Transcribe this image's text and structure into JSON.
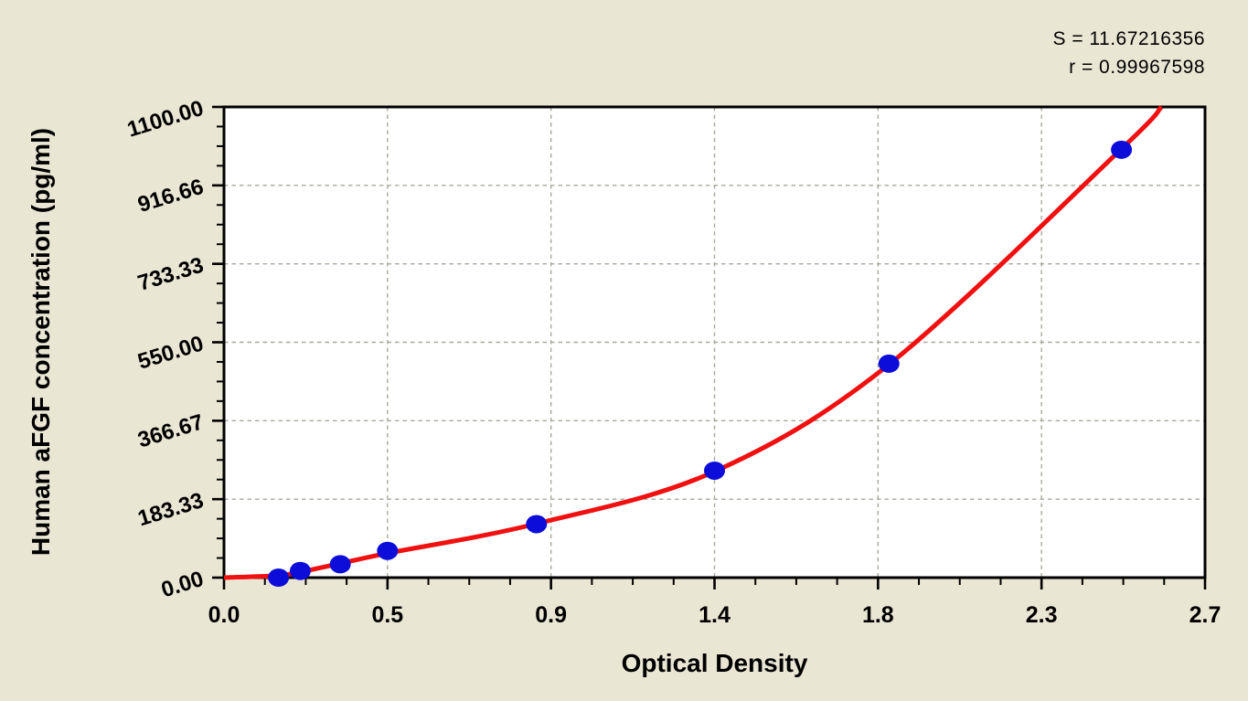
{
  "stats": {
    "s_line": "S = 11.67216356",
    "r_line": "r = 0.99967598"
  },
  "axes": {
    "x_title": "Optical Density",
    "y_title": "Human aFGF concentration (pg/ml)",
    "x_tick_labels": [
      "0.0",
      "0.5",
      "0.9",
      "1.4",
      "1.8",
      "2.3",
      "2.7"
    ],
    "y_tick_labels": [
      "0.00",
      "183.33",
      "366.67",
      "550.00",
      "733.33",
      "916.66",
      "1100.00"
    ],
    "x_range": [
      0,
      2.7
    ],
    "y_range": [
      0,
      1100
    ],
    "minor_ticks_per_interval": 3,
    "grid": "dashed gray lines at every major tick"
  },
  "chart_data": {
    "type": "scatter",
    "title": "",
    "xlabel": "Optical Density",
    "ylabel": "Human aFGF concentration (pg/ml)",
    "xlim": [
      0,
      2.7
    ],
    "ylim": [
      0,
      1100
    ],
    "legend": "none",
    "annotations": [
      "S = 11.67216356",
      "r = 0.99967598"
    ],
    "series": [
      {
        "name": "standard-points",
        "type": "scatter",
        "x": [
          0.15,
          0.21,
          0.32,
          0.45,
          0.86,
          1.35,
          1.83,
          2.47
        ],
        "y": [
          0,
          15.6,
          31.2,
          62.5,
          125,
          250,
          500,
          1000
        ]
      },
      {
        "name": "fitted-curve",
        "type": "line",
        "x": [
          0.0,
          0.15,
          0.21,
          0.32,
          0.45,
          0.86,
          1.35,
          1.83,
          2.47,
          2.58
        ],
        "y": [
          0,
          5,
          13,
          33,
          57,
          126,
          248,
          498,
          1002,
          1100
        ]
      }
    ]
  },
  "colors": {
    "background": "#eae6d4",
    "plot_background": "#ffffff",
    "curve": "#f01010",
    "points": "#0d0dda",
    "grid": "#a8a89c",
    "axis": "#000000",
    "text": "#000000"
  }
}
